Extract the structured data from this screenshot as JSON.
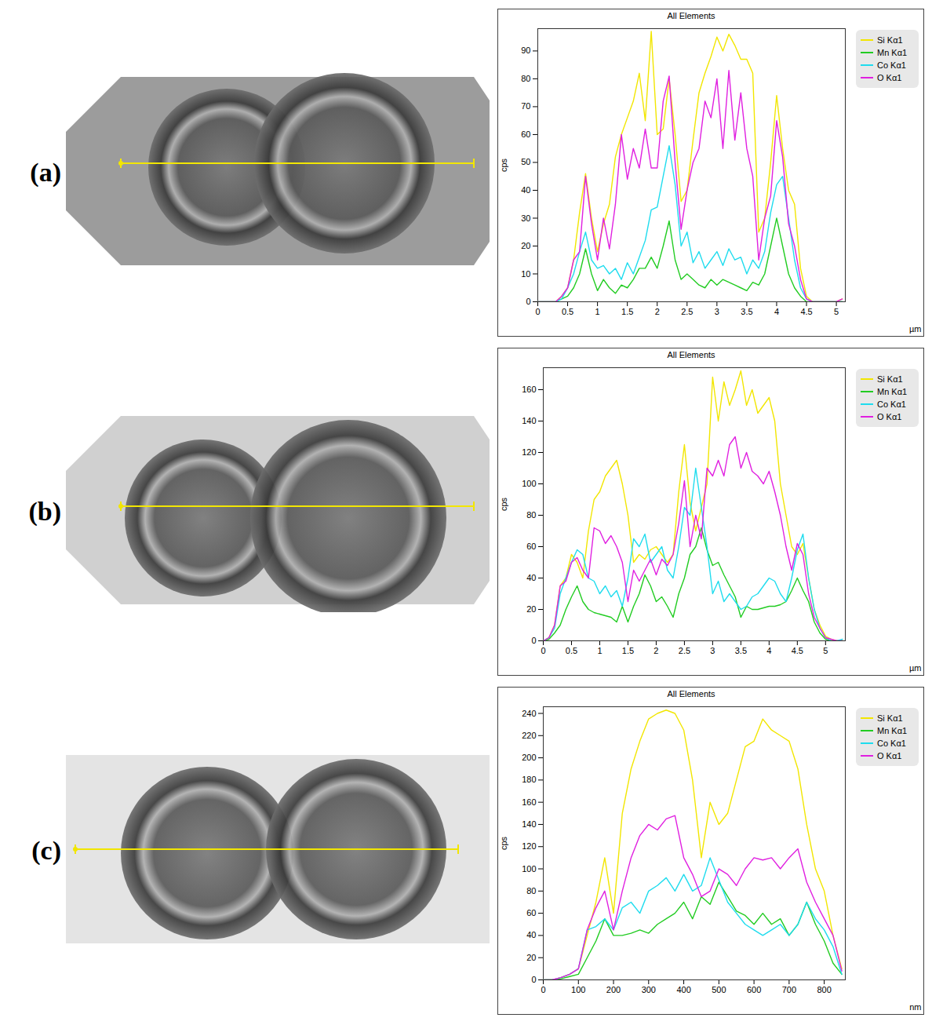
{
  "chart_data": [
    {
      "panel_label": "(a)",
      "type": "line",
      "title": "All Elements",
      "x_label": "µm",
      "y_label": "cps",
      "xlim": [
        0,
        5.15
      ],
      "xticks": [
        0,
        0.5,
        1,
        1.5,
        2,
        2.5,
        3,
        3.5,
        4,
        4.5,
        5
      ],
      "ylim": [
        0,
        98
      ],
      "yticks": [
        0,
        10,
        20,
        30,
        40,
        50,
        60,
        70,
        80,
        90
      ],
      "grid": false,
      "legend": "right",
      "x": [
        0,
        0.1,
        0.2,
        0.3,
        0.4,
        0.5,
        0.6,
        0.7,
        0.8,
        0.9,
        1,
        1.1,
        1.2,
        1.3,
        1.4,
        1.5,
        1.6,
        1.7,
        1.8,
        1.9,
        2,
        2.1,
        2.2,
        2.3,
        2.4,
        2.5,
        2.6,
        2.7,
        2.8,
        2.9,
        3,
        3.1,
        3.2,
        3.3,
        3.4,
        3.5,
        3.6,
        3.7,
        3.8,
        3.9,
        4,
        4.1,
        4.2,
        4.3,
        4.4,
        4.5,
        4.6,
        4.7,
        4.8,
        4.9,
        5,
        5.1
      ],
      "series": [
        {
          "name": "Si Kα1",
          "color": "#f2e600",
          "values": [
            0,
            0,
            0,
            0,
            2,
            5,
            15,
            32,
            46,
            30,
            18,
            28,
            35,
            52,
            60,
            66,
            72,
            82,
            65,
            97,
            60,
            62,
            80,
            60,
            36,
            40,
            58,
            75,
            82,
            88,
            95,
            90,
            96,
            92,
            87,
            87,
            82,
            25,
            30,
            50,
            74,
            55,
            40,
            35,
            12,
            2,
            0,
            0,
            0,
            0,
            0,
            1
          ]
        },
        {
          "name": "Mn Kα1",
          "color": "#22cc22",
          "values": [
            0,
            0,
            0,
            0,
            1,
            2,
            5,
            10,
            19,
            10,
            4,
            8,
            5,
            3,
            6,
            5,
            8,
            12,
            12,
            16,
            12,
            20,
            29,
            15,
            8,
            10,
            8,
            6,
            5,
            8,
            6,
            8,
            7,
            6,
            5,
            4,
            7,
            6,
            10,
            20,
            30,
            20,
            10,
            5,
            2,
            0,
            0,
            0,
            0,
            0,
            0,
            0
          ]
        },
        {
          "name": "Co Kα1",
          "color": "#1fdcee",
          "values": [
            0,
            0,
            0,
            0,
            1,
            5,
            10,
            18,
            25,
            15,
            12,
            13,
            10,
            12,
            8,
            14,
            10,
            16,
            22,
            33,
            34,
            45,
            56,
            42,
            20,
            25,
            14,
            18,
            12,
            15,
            18,
            13,
            19,
            15,
            16,
            10,
            15,
            12,
            18,
            32,
            42,
            45,
            30,
            15,
            5,
            1,
            0,
            0,
            0,
            0,
            0,
            0
          ]
        },
        {
          "name": "O Kα1",
          "color": "#e020e0",
          "values": [
            0,
            0,
            0,
            0,
            2,
            5,
            15,
            18,
            45,
            28,
            15,
            30,
            19,
            35,
            60,
            44,
            55,
            48,
            62,
            48,
            48,
            72,
            81,
            50,
            26,
            40,
            50,
            55,
            72,
            66,
            80,
            55,
            83,
            58,
            75,
            55,
            45,
            15,
            30,
            38,
            65,
            52,
            28,
            20,
            8,
            1,
            0,
            0,
            0,
            0,
            0,
            1
          ]
        }
      ]
    },
    {
      "panel_label": "(b)",
      "type": "line",
      "title": "All Elements",
      "x_label": "µm",
      "y_label": "cps",
      "xlim": [
        0,
        5.35
      ],
      "xticks": [
        0,
        0.5,
        1,
        1.5,
        2,
        2.5,
        3,
        3.5,
        4,
        4.5,
        5
      ],
      "ylim": [
        0,
        174
      ],
      "yticks": [
        0,
        20,
        40,
        60,
        80,
        100,
        120,
        140,
        160
      ],
      "grid": false,
      "legend": "right",
      "x": [
        0,
        0.1,
        0.2,
        0.3,
        0.4,
        0.5,
        0.6,
        0.7,
        0.8,
        0.9,
        1,
        1.1,
        1.2,
        1.3,
        1.4,
        1.5,
        1.6,
        1.7,
        1.8,
        1.9,
        2,
        2.1,
        2.2,
        2.3,
        2.4,
        2.5,
        2.6,
        2.7,
        2.8,
        2.9,
        3,
        3.1,
        3.2,
        3.3,
        3.4,
        3.5,
        3.6,
        3.7,
        3.8,
        3.9,
        4,
        4.1,
        4.2,
        4.3,
        4.4,
        4.5,
        4.6,
        4.7,
        4.8,
        4.9,
        5,
        5.1,
        5.2,
        5.3
      ],
      "series": [
        {
          "name": "Si Kα1",
          "color": "#f2e600",
          "values": [
            0,
            2,
            10,
            35,
            40,
            55,
            50,
            40,
            70,
            90,
            95,
            105,
            110,
            115,
            100,
            80,
            50,
            55,
            52,
            58,
            60,
            55,
            50,
            55,
            95,
            125,
            88,
            70,
            85,
            100,
            168,
            140,
            165,
            150,
            160,
            172,
            150,
            160,
            145,
            150,
            155,
            140,
            100,
            80,
            60,
            55,
            62,
            40,
            20,
            10,
            3,
            1,
            0,
            0
          ]
        },
        {
          "name": "Mn Kα1",
          "color": "#22cc22",
          "values": [
            0,
            1,
            5,
            10,
            20,
            28,
            35,
            25,
            20,
            18,
            17,
            16,
            15,
            12,
            22,
            12,
            22,
            30,
            42,
            35,
            25,
            28,
            22,
            15,
            30,
            40,
            55,
            60,
            72,
            58,
            48,
            50,
            42,
            35,
            28,
            15,
            22,
            20,
            20,
            21,
            22,
            22,
            23,
            25,
            32,
            40,
            32,
            25,
            12,
            5,
            1,
            0,
            0,
            0
          ]
        },
        {
          "name": "Co Kα1",
          "color": "#1fdcee",
          "values": [
            0,
            2,
            8,
            30,
            40,
            50,
            58,
            55,
            40,
            38,
            30,
            35,
            28,
            32,
            22,
            40,
            65,
            60,
            68,
            50,
            55,
            60,
            45,
            40,
            60,
            85,
            80,
            110,
            85,
            60,
            30,
            38,
            25,
            30,
            25,
            20,
            22,
            28,
            30,
            35,
            40,
            38,
            30,
            25,
            40,
            58,
            68,
            40,
            20,
            8,
            2,
            0,
            0,
            1
          ]
        },
        {
          "name": "O Kα1",
          "color": "#e020e0",
          "values": [
            0,
            2,
            10,
            35,
            38,
            50,
            53,
            45,
            40,
            72,
            70,
            62,
            67,
            60,
            50,
            25,
            45,
            38,
            45,
            52,
            42,
            52,
            48,
            55,
            75,
            102,
            60,
            80,
            65,
            110,
            105,
            115,
            105,
            125,
            130,
            110,
            120,
            108,
            105,
            100,
            108,
            95,
            80,
            60,
            45,
            62,
            55,
            30,
            15,
            8,
            2,
            1,
            0,
            0
          ]
        }
      ]
    },
    {
      "panel_label": "(c)",
      "type": "line",
      "title": "All Elements",
      "x_label": "nm",
      "y_label": "cps",
      "xlim": [
        0,
        860
      ],
      "xticks": [
        0,
        100,
        200,
        300,
        400,
        500,
        600,
        700,
        800
      ],
      "ylim": [
        0,
        246
      ],
      "yticks": [
        0,
        20,
        40,
        60,
        80,
        100,
        120,
        140,
        160,
        180,
        200,
        220,
        240
      ],
      "grid": false,
      "legend": "right",
      "x": [
        0,
        25,
        50,
        75,
        100,
        125,
        150,
        175,
        200,
        225,
        250,
        275,
        300,
        325,
        350,
        375,
        400,
        425,
        450,
        475,
        500,
        525,
        550,
        575,
        600,
        625,
        650,
        675,
        700,
        725,
        750,
        775,
        800,
        825,
        850
      ],
      "series": [
        {
          "name": "Si Kα1",
          "color": "#f2e600",
          "values": [
            0,
            0,
            2,
            5,
            10,
            40,
            70,
            110,
            60,
            150,
            190,
            215,
            235,
            240,
            243,
            240,
            225,
            180,
            110,
            160,
            140,
            150,
            180,
            210,
            215,
            235,
            225,
            220,
            215,
            190,
            140,
            100,
            80,
            40,
            10
          ]
        },
        {
          "name": "Mn Kα1",
          "color": "#22cc22",
          "values": [
            0,
            0,
            1,
            3,
            5,
            20,
            35,
            55,
            40,
            40,
            42,
            45,
            42,
            50,
            55,
            60,
            70,
            55,
            75,
            68,
            88,
            75,
            62,
            58,
            50,
            60,
            50,
            55,
            40,
            50,
            70,
            50,
            35,
            15,
            5
          ]
        },
        {
          "name": "Co Kα1",
          "color": "#1fdcee",
          "values": [
            0,
            0,
            2,
            5,
            10,
            45,
            48,
            55,
            45,
            65,
            70,
            60,
            80,
            85,
            92,
            80,
            95,
            80,
            85,
            110,
            90,
            70,
            60,
            50,
            45,
            40,
            45,
            50,
            40,
            50,
            70,
            55,
            45,
            30,
            5
          ]
        },
        {
          "name": "O Kα1",
          "color": "#e020e0",
          "values": [
            0,
            0,
            2,
            5,
            10,
            45,
            65,
            80,
            45,
            80,
            110,
            130,
            140,
            135,
            145,
            148,
            110,
            95,
            75,
            80,
            100,
            95,
            85,
            100,
            110,
            108,
            110,
            100,
            110,
            118,
            88,
            70,
            55,
            40,
            8
          ]
        }
      ]
    }
  ]
}
